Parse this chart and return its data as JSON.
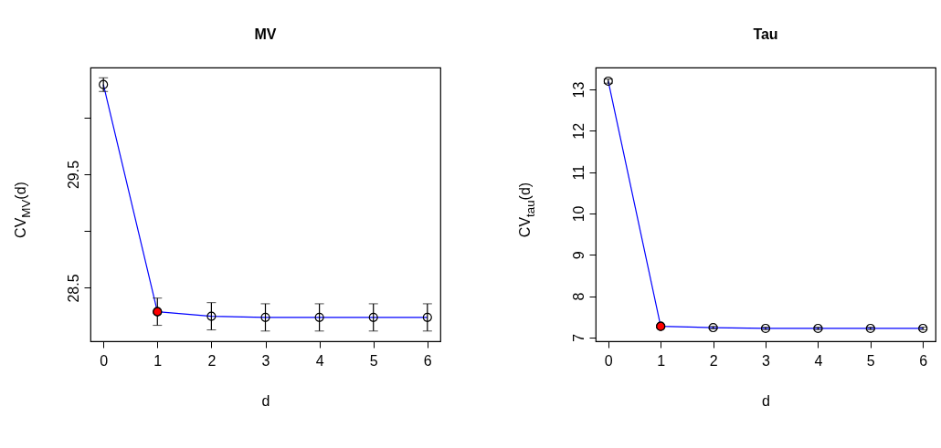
{
  "chart_data": [
    {
      "type": "line",
      "title": "MV",
      "xlabel": "d",
      "ylabel": "CV$_{MV}$(d)",
      "x": [
        0,
        1,
        2,
        3,
        4,
        5,
        6
      ],
      "xlim": [
        -0.24,
        6.24
      ],
      "xticks": [
        0,
        1,
        2,
        3,
        4,
        5,
        6
      ],
      "ylim": [
        28.03,
        30.44
      ],
      "yticks": [
        28.5,
        {
          "value": 29.0,
          "label": null
        },
        29.5,
        {
          "value": 30.0,
          "label": null
        }
      ],
      "series": [
        {
          "type": "line",
          "color": "#0000ff",
          "values": [
            30.29,
            28.29,
            28.25,
            28.24,
            28.24,
            28.24,
            28.24
          ]
        },
        {
          "type": "scatter",
          "color": "#000000",
          "marker": "circle",
          "values": [
            30.29,
            28.29,
            28.25,
            28.24,
            28.24,
            28.24,
            28.24
          ],
          "errors": [
            0.06,
            0.12,
            0.12,
            0.12,
            0.12,
            0.12,
            0.12
          ]
        },
        {
          "type": "scatter",
          "color": "#ff0000",
          "marker": "circle",
          "x": [
            1
          ],
          "values": [
            28.29
          ]
        }
      ]
    },
    {
      "type": "line",
      "title": "Tau",
      "xlabel": "d",
      "ylabel": "CV$_{tau}$(d)",
      "x": [
        0,
        1,
        2,
        3,
        4,
        5,
        6
      ],
      "xlim": [
        -0.24,
        6.24
      ],
      "xticks": [
        0,
        1,
        2,
        3,
        4,
        5,
        6
      ],
      "ylim": [
        6.91,
        13.53
      ],
      "yticks": [
        7,
        8,
        9,
        10,
        11,
        12,
        13
      ],
      "series": [
        {
          "type": "line",
          "color": "#0000ff",
          "values": [
            13.2,
            7.27,
            7.24,
            7.22,
            7.22,
            7.22,
            7.22
          ]
        },
        {
          "type": "scatter",
          "color": "#000000",
          "marker": "circle",
          "values": [
            13.2,
            7.27,
            7.24,
            7.22,
            7.22,
            7.22,
            7.22
          ],
          "errors": [
            0.05,
            0.03,
            0.03,
            0.03,
            0.03,
            0.03,
            0.03
          ]
        },
        {
          "type": "scatter",
          "color": "#ff0000",
          "marker": "circle",
          "x": [
            1
          ],
          "values": [
            7.27
          ]
        }
      ]
    }
  ]
}
